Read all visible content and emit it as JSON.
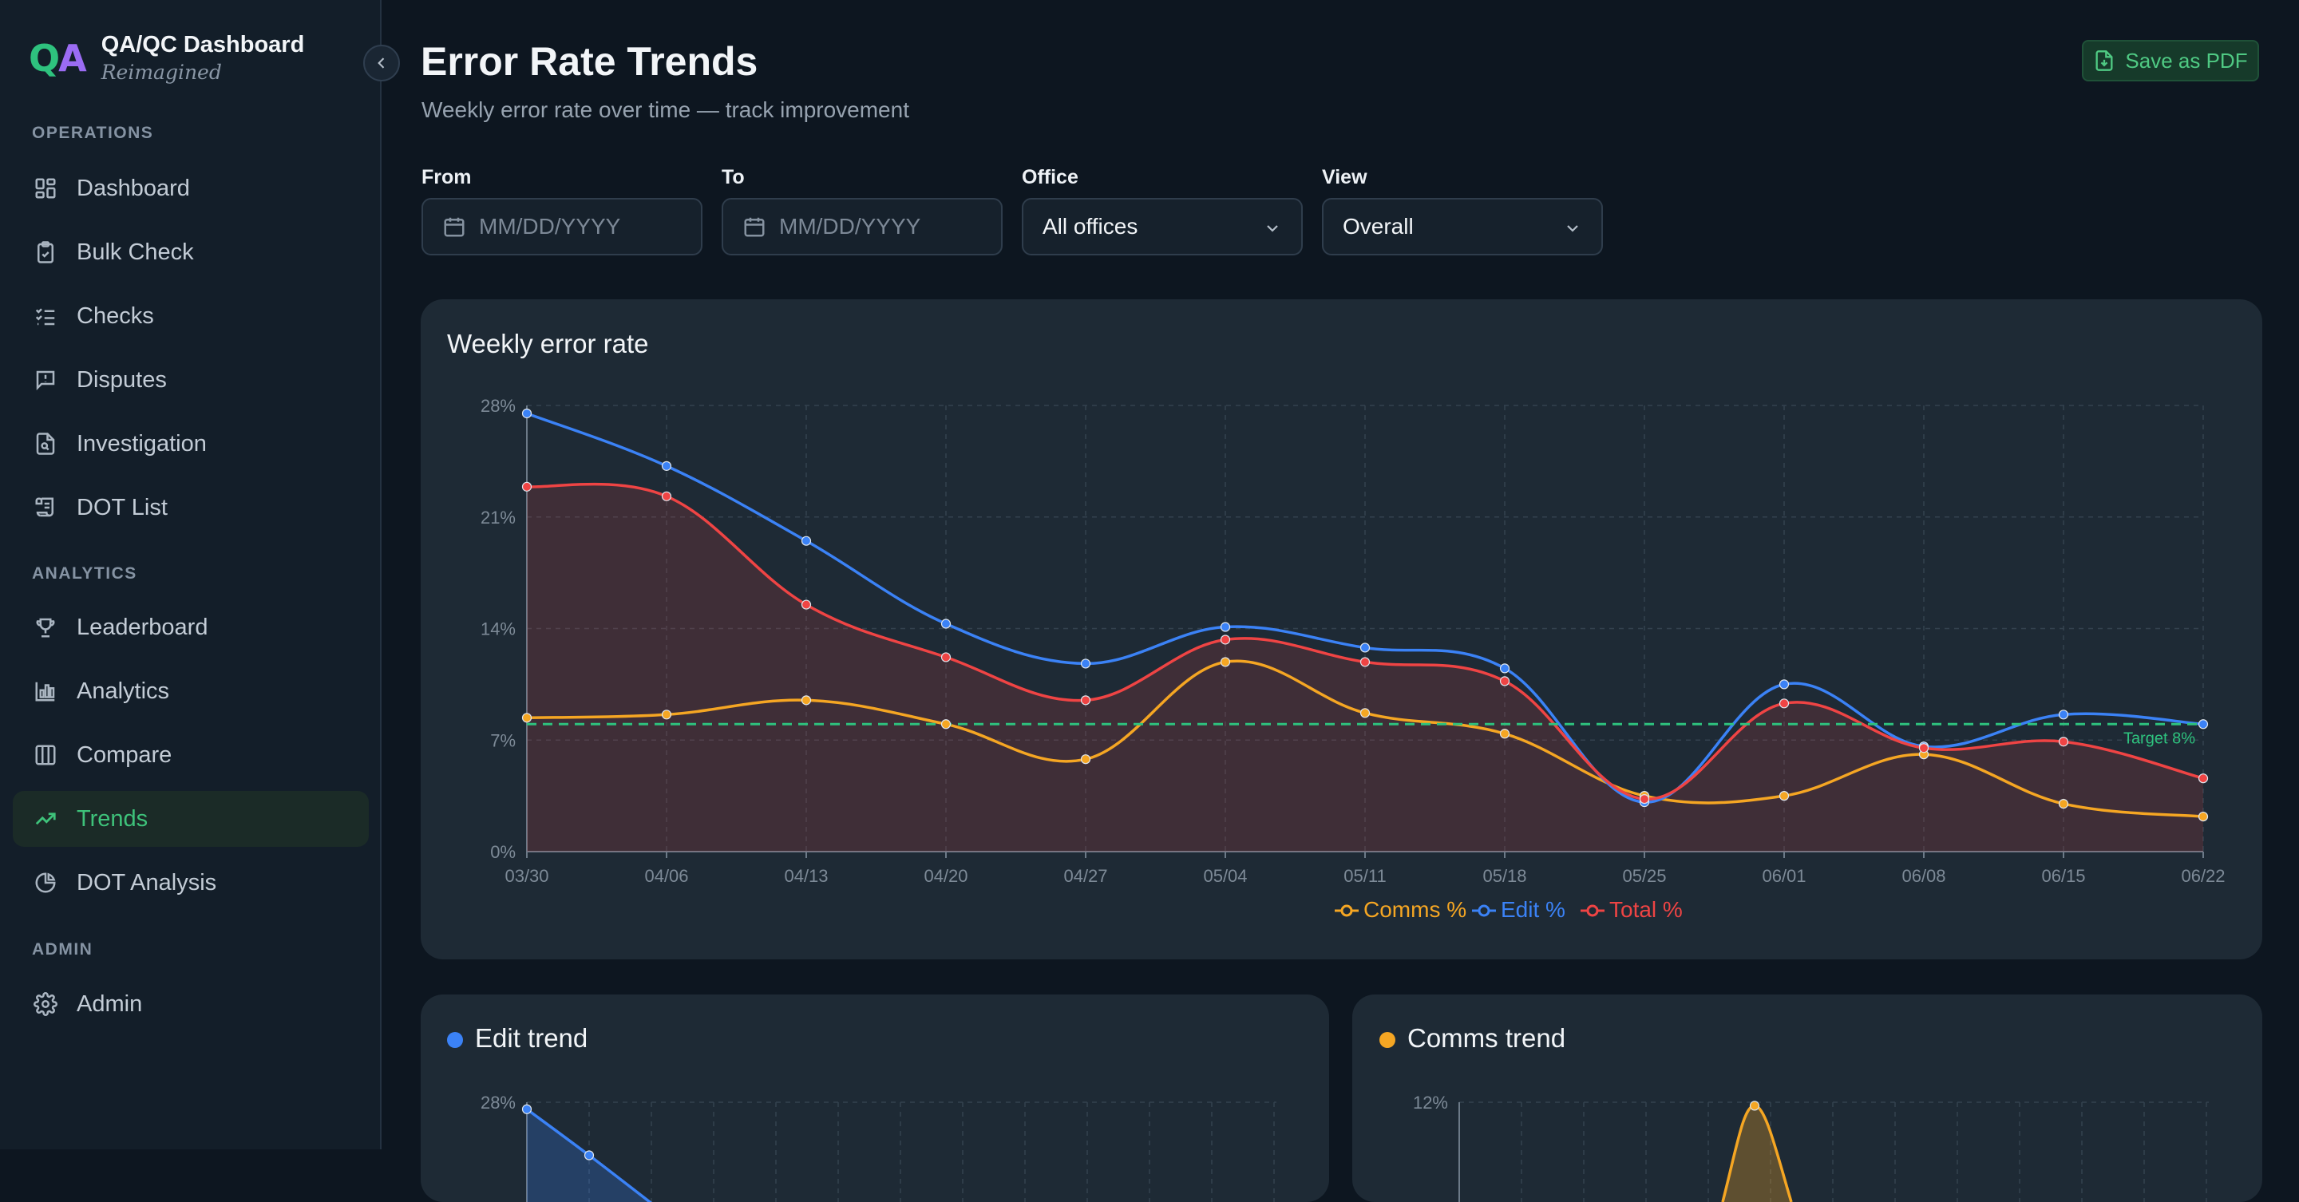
{
  "brand": {
    "logo_q": "Q",
    "logo_a": "A",
    "title": "QA/QC Dashboard",
    "subtitle": "Reimagined"
  },
  "sidebar": {
    "sections": [
      {
        "label": "OPERATIONS"
      },
      {
        "label": "ANALYTICS"
      },
      {
        "label": "ADMIN"
      }
    ],
    "items": [
      {
        "label": "Dashboard",
        "icon": "dashboard-icon"
      },
      {
        "label": "Bulk Check",
        "icon": "clipboard-check-icon"
      },
      {
        "label": "Checks",
        "icon": "checklist-icon"
      },
      {
        "label": "Disputes",
        "icon": "message-alert-icon"
      },
      {
        "label": "Investigation",
        "icon": "file-search-icon"
      },
      {
        "label": "DOT List",
        "icon": "scroll-icon"
      },
      {
        "label": "Leaderboard",
        "icon": "trophy-icon"
      },
      {
        "label": "Analytics",
        "icon": "bar-chart-icon"
      },
      {
        "label": "Compare",
        "icon": "columns-icon"
      },
      {
        "label": "Trends",
        "icon": "trending-up-icon",
        "active": true
      },
      {
        "label": "DOT Analysis",
        "icon": "pie-chart-icon"
      },
      {
        "label": "Admin",
        "icon": "gear-icon"
      }
    ]
  },
  "header": {
    "title": "Error Rate Trends",
    "subtitle": "Weekly error rate over time — track improvement",
    "pdf_label": "Save as PDF"
  },
  "filters": {
    "from": {
      "label": "From",
      "placeholder": "MM/DD/YYYY"
    },
    "to": {
      "label": "To",
      "placeholder": "MM/DD/YYYY"
    },
    "office": {
      "label": "Office",
      "value": "All offices"
    },
    "view": {
      "label": "View",
      "value": "Overall"
    }
  },
  "colors": {
    "accent": "#3ec27a",
    "comms": "#f5a623",
    "edit": "#3b82f6",
    "total": "#ef4444",
    "target": "#2ec27e"
  },
  "main_chart": {
    "title": "Weekly error rate",
    "target_label": "Target 8%"
  },
  "chart_data": [
    {
      "type": "line",
      "title": "Weekly error rate",
      "x": [
        "03/30",
        "04/06",
        "04/13",
        "04/20",
        "04/27",
        "05/04",
        "05/11",
        "05/18",
        "05/25",
        "06/01",
        "06/08",
        "06/15",
        "06/22"
      ],
      "y_ticks": [
        "0%",
        "7%",
        "14%",
        "21%",
        "28%"
      ],
      "ylim": [
        0,
        28
      ],
      "grid": true,
      "legend_position": "bottom",
      "target": 8,
      "series": [
        {
          "name": "Comms %",
          "color": "#f5a623",
          "values": [
            8.4,
            8.6,
            9.5,
            8.0,
            5.8,
            11.9,
            8.7,
            7.4,
            3.5,
            3.5,
            6.1,
            3.0,
            2.2
          ]
        },
        {
          "name": "Edit %",
          "color": "#3b82f6",
          "values": [
            27.5,
            24.2,
            19.5,
            14.3,
            11.8,
            14.1,
            12.8,
            11.5,
            3.1,
            10.5,
            6.6,
            8.6,
            8.0
          ]
        },
        {
          "name": "Total %",
          "color": "#ef4444",
          "values": [
            22.9,
            22.3,
            15.5,
            12.2,
            9.5,
            13.3,
            11.9,
            10.7,
            3.3,
            9.3,
            6.5,
            6.9,
            4.6
          ]
        }
      ]
    },
    {
      "type": "area",
      "title": "Edit trend",
      "y_ticks": [
        "28%"
      ],
      "series": [
        {
          "name": "Edit %",
          "color": "#3b82f6",
          "values": [
            27.5,
            24.2
          ]
        }
      ]
    },
    {
      "type": "area",
      "title": "Comms trend",
      "y_ticks": [
        "12%"
      ],
      "series": [
        {
          "name": "Comms %",
          "color": "#f5a623",
          "values": [
            11.9
          ]
        }
      ]
    }
  ],
  "edit_card": {
    "title": "Edit trend",
    "tick": "28%"
  },
  "comms_card": {
    "title": "Comms trend",
    "tick": "12%"
  }
}
